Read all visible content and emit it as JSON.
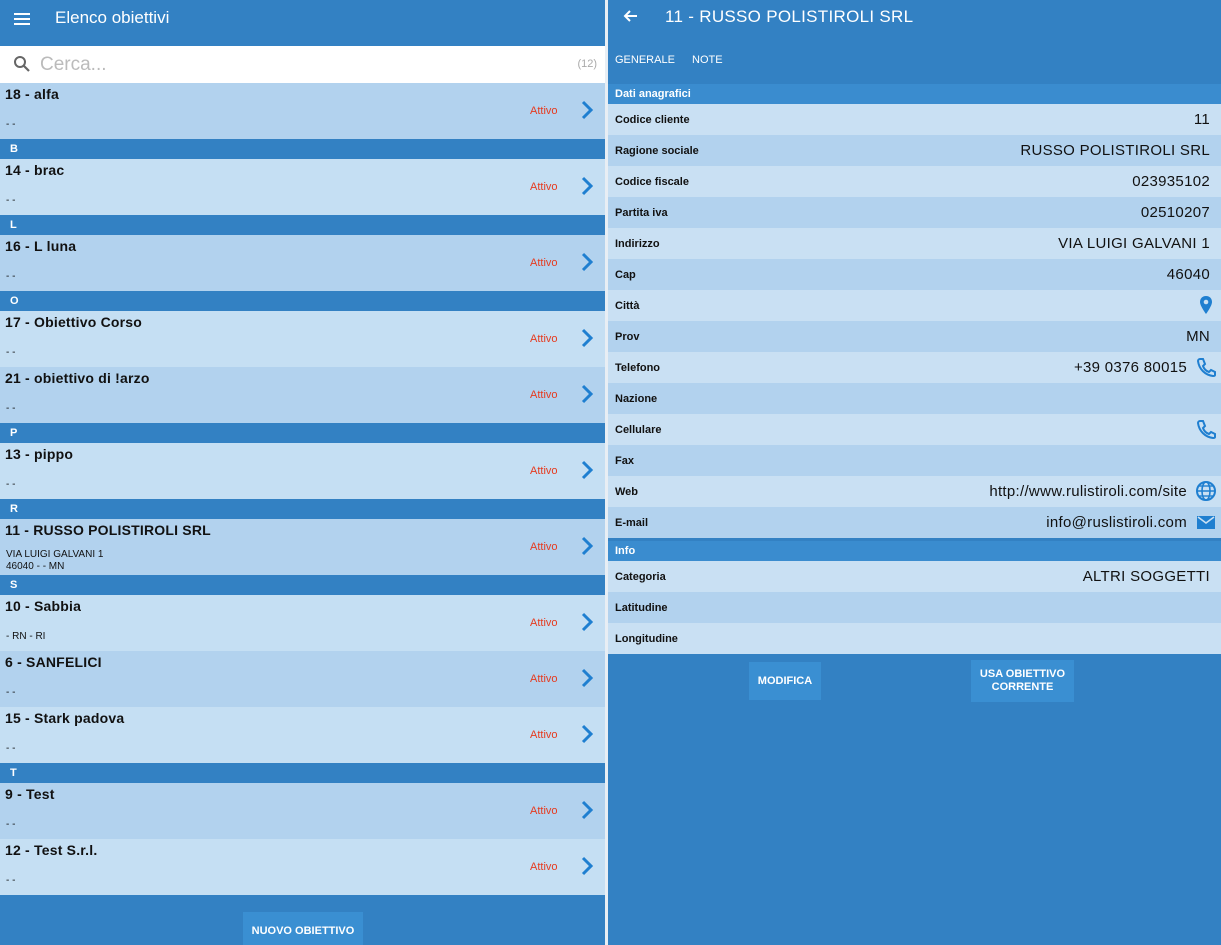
{
  "left": {
    "title": "Elenco obiettivi",
    "search_placeholder": "Cerca...",
    "count": "(12)",
    "new_button": "NUOVO OBIETTIVO"
  },
  "list": [
    {
      "type": "item",
      "title": "18 - alfa",
      "line2": "",
      "line3": "-  -",
      "status": "Attivo"
    },
    {
      "type": "section",
      "letter": "B"
    },
    {
      "type": "item",
      "title": "14 - brac",
      "line2": "",
      "line3": "-  -",
      "status": "Attivo"
    },
    {
      "type": "section",
      "letter": "L"
    },
    {
      "type": "item",
      "title": "16 - L luna",
      "line2": "",
      "line3": "-  -",
      "status": "Attivo"
    },
    {
      "type": "section",
      "letter": "O"
    },
    {
      "type": "item",
      "title": "17 - Obiettivo Corso",
      "line2": "",
      "line3": "-  -",
      "status": "Attivo"
    },
    {
      "type": "item",
      "title": "21 - obiettivo di !arzo",
      "line2": "",
      "line3": "-  -",
      "status": "Attivo"
    },
    {
      "type": "section",
      "letter": "P"
    },
    {
      "type": "item",
      "title": "13 - pippo",
      "line2": "",
      "line3": "-  -",
      "status": "Attivo"
    },
    {
      "type": "section",
      "letter": "R"
    },
    {
      "type": "item",
      "title": "11 - RUSSO POLISTIROLI SRL",
      "line2": "VIA LUIGI GALVANI 1",
      "line3": "46040 -   - MN",
      "status": "Attivo",
      "line3_override": true
    },
    {
      "type": "section",
      "letter": "S"
    },
    {
      "type": "item",
      "title": "10 - Sabbia",
      "line2": "",
      "line3": " - RN - RI",
      "status": "Attivo"
    },
    {
      "type": "item",
      "title": "6 - SANFELICI",
      "line2": "",
      "line3": "-  -",
      "status": "Attivo"
    },
    {
      "type": "item",
      "title": "15 - Stark padova",
      "line2": "",
      "line3": "-  -",
      "status": "Attivo"
    },
    {
      "type": "section",
      "letter": "T"
    },
    {
      "type": "item",
      "title": "9 - Test",
      "line2": "",
      "line3": "-  -",
      "status": "Attivo"
    },
    {
      "type": "item",
      "title": "12 - Test S.r.l.",
      "line2": "",
      "line3": "-  -",
      "status": "Attivo"
    }
  ],
  "right": {
    "title": "11 - RUSSO POLISTIROLI SRL",
    "tabs": [
      "GENERALE",
      "NOTE"
    ],
    "group1": "Dati anagrafici",
    "rows1": [
      {
        "label": "Codice cliente",
        "value": "11",
        "icon": ""
      },
      {
        "label": "Ragione sociale",
        "value": "RUSSO POLISTIROLI SRL",
        "icon": ""
      },
      {
        "label": "Codice fiscale",
        "value": "023935102",
        "icon": ""
      },
      {
        "label": "Partita iva",
        "value": "02510207",
        "icon": ""
      },
      {
        "label": "Indirizzo",
        "value": "VIA LUIGI GALVANI 1",
        "icon": ""
      },
      {
        "label": "Cap",
        "value": "46040",
        "icon": ""
      },
      {
        "label": "Città",
        "value": "",
        "icon": "map-pin"
      },
      {
        "label": "Prov",
        "value": "MN",
        "icon": ""
      },
      {
        "label": "Telefono",
        "value": "+39 0376 80015",
        "icon": "phone"
      },
      {
        "label": "Nazione",
        "value": "",
        "icon": ""
      },
      {
        "label": "Cellulare",
        "value": "",
        "icon": "phone"
      },
      {
        "label": "Fax",
        "value": "",
        "icon": ""
      },
      {
        "label": "Web",
        "value": "http://www.rulistiroli.com/site",
        "icon": "globe"
      },
      {
        "label": "E-mail",
        "value": "info@ruslistiroli.com",
        "icon": "mail"
      }
    ],
    "group2": "Info",
    "rows2": [
      {
        "label": "Categoria",
        "value": "ALTRI SOGGETTI",
        "icon": ""
      },
      {
        "label": "Latitudine",
        "value": "",
        "icon": ""
      },
      {
        "label": "Longitudine",
        "value": "",
        "icon": ""
      }
    ],
    "modifica": "MODIFICA",
    "usa_line1": "USA OBIETTIVO",
    "usa_line2": "CORRENTE"
  },
  "colors": {
    "accent": "#3381c3",
    "status": "#e63a1e",
    "icon": "#1f7fd0"
  }
}
